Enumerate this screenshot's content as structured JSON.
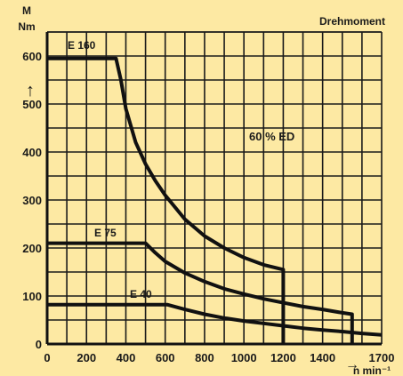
{
  "chart_data": {
    "type": "line",
    "title": "Drehmoment",
    "ylabel_top": "M",
    "ylabel_unit": "Nm",
    "ylabel_arrow": "↑",
    "xlabel": "n min⁻¹",
    "xlabel_arrow": "→",
    "annotation": "60 % ED",
    "xlim": [
      0,
      1700
    ],
    "ylim": [
      0,
      650
    ],
    "x_ticks": [
      0,
      200,
      400,
      600,
      800,
      1000,
      1200,
      1400,
      1700
    ],
    "y_ticks": [
      0,
      100,
      200,
      300,
      400,
      500,
      600
    ],
    "grid": true,
    "series": [
      {
        "name": "E 160",
        "x": [
          0,
          350,
          375,
          400,
          450,
          500,
          550,
          600,
          700,
          800,
          900,
          1000,
          1100,
          1200,
          1200
        ],
        "y": [
          595,
          595,
          550,
          490,
          420,
          375,
          340,
          310,
          260,
          225,
          200,
          180,
          165,
          155,
          0
        ]
      },
      {
        "name": "E 75",
        "x": [
          0,
          500,
          550,
          600,
          700,
          800,
          900,
          1000,
          1100,
          1200,
          1300,
          1400,
          1500,
          1550,
          1550
        ],
        "y": [
          210,
          210,
          190,
          172,
          148,
          130,
          115,
          104,
          94,
          86,
          78,
          72,
          65,
          62,
          0
        ]
      },
      {
        "name": "E 40",
        "x": [
          0,
          610,
          700,
          800,
          900,
          1000,
          1100,
          1200,
          1300,
          1400,
          1500,
          1600,
          1700
        ],
        "y": [
          82,
          82,
          72,
          62,
          54,
          48,
          43,
          38,
          33,
          29,
          26,
          22,
          19
        ]
      }
    ]
  }
}
